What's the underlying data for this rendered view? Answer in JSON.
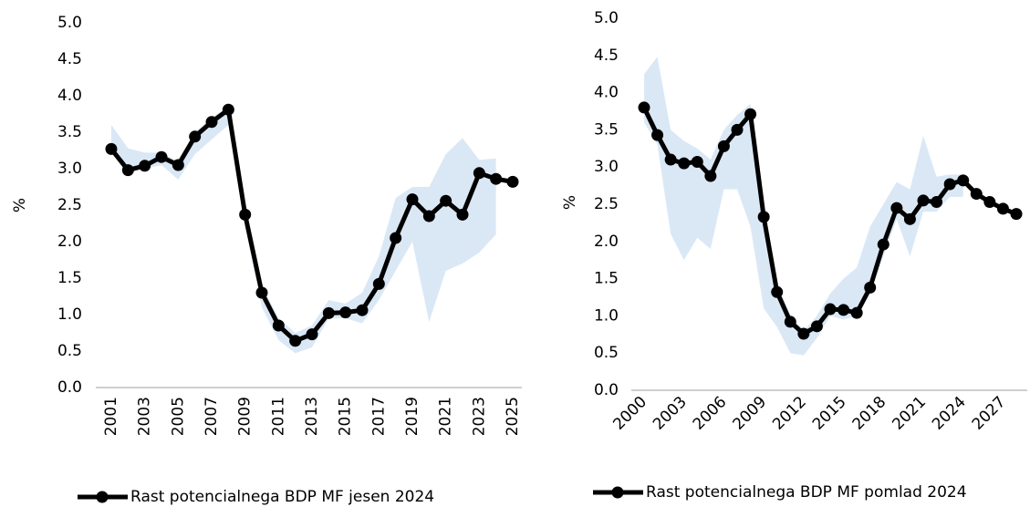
{
  "chart_data": [
    {
      "type": "line",
      "categories": [
        "2001",
        null,
        "2003",
        null,
        "2005",
        null,
        "2007",
        null,
        "2009",
        null,
        "2011",
        null,
        "2013",
        null,
        "2015",
        null,
        "2017",
        null,
        "2019",
        null,
        "2021",
        null,
        "2023",
        null,
        "2025"
      ],
      "series": [
        {
          "name": "Rast potencialnega BDP MF jesen 2024",
          "color": "#000000",
          "values": [
            3.27,
            2.98,
            3.04,
            3.16,
            3.05,
            3.44,
            3.64,
            3.81,
            2.37,
            1.3,
            0.85,
            0.64,
            0.73,
            1.02,
            1.03,
            1.06,
            1.42,
            2.05,
            2.58,
            2.35,
            2.56,
            2.37,
            2.94,
            2.86,
            2.82
          ]
        }
      ],
      "band": {
        "color": "#dae8f6",
        "high": [
          3.6,
          3.28,
          3.22,
          3.22,
          3.1,
          3.5,
          3.7,
          3.85,
          2.5,
          1.4,
          0.95,
          0.75,
          0.85,
          1.2,
          1.15,
          1.3,
          1.8,
          2.6,
          2.75,
          2.75,
          3.2,
          3.42,
          3.12,
          3.14,
          null
        ],
        "low": [
          3.3,
          3.0,
          3.0,
          3.05,
          2.85,
          3.2,
          3.4,
          3.6,
          2.2,
          1.1,
          0.65,
          0.47,
          0.55,
          0.95,
          0.95,
          0.88,
          1.2,
          1.6,
          2.0,
          0.9,
          1.6,
          1.7,
          1.85,
          2.1,
          null
        ]
      },
      "ylabel": "%",
      "ylim": [
        0,
        5
      ],
      "yticks": [
        {
          "value": 0,
          "label": "0.0"
        },
        0.5,
        {
          "value": 1,
          "label": "1.0"
        },
        1.5,
        {
          "value": 2,
          "label": "2.0"
        },
        2.5,
        {
          "value": 3,
          "label": "3.0"
        },
        3.5,
        {
          "value": 4,
          "label": "4.0"
        },
        4.5,
        {
          "value": 5,
          "label": "5.0"
        }
      ],
      "legend": "bottom"
    },
    {
      "type": "line",
      "categories": [
        "2000",
        null,
        null,
        "2003",
        null,
        null,
        "2006",
        null,
        null,
        "2009",
        null,
        null,
        "2012",
        null,
        null,
        "2015",
        null,
        null,
        "2018",
        null,
        null,
        "2021",
        null,
        null,
        "2024",
        null,
        null,
        "2027",
        null
      ],
      "series": [
        {
          "name": "Rast potencialnega BDP MF pomlad 2024",
          "color": "#000000",
          "values": [
            3.8,
            3.43,
            3.1,
            3.05,
            3.07,
            2.88,
            3.28,
            3.5,
            3.71,
            2.33,
            1.32,
            0.92,
            0.76,
            0.86,
            1.09,
            1.08,
            1.04,
            1.38,
            1.96,
            2.45,
            2.3,
            2.55,
            2.53,
            2.77,
            2.82,
            2.64,
            2.53,
            2.44,
            2.37
          ]
        }
      ],
      "band": {
        "color": "#dae8f6",
        "high": [
          4.25,
          4.48,
          3.5,
          3.35,
          3.25,
          3.1,
          3.5,
          3.7,
          3.85,
          2.5,
          1.45,
          1.0,
          0.8,
          1.0,
          1.3,
          1.5,
          1.65,
          2.2,
          2.5,
          2.8,
          2.7,
          3.42,
          2.87,
          2.9,
          2.9,
          null,
          null,
          null,
          null
        ],
        "low": [
          3.6,
          3.3,
          2.1,
          1.75,
          2.05,
          1.9,
          2.7,
          2.7,
          2.2,
          1.1,
          0.85,
          0.5,
          0.47,
          0.7,
          1.0,
          0.95,
          1.0,
          1.3,
          1.8,
          2.3,
          1.8,
          2.4,
          2.4,
          2.6,
          2.6,
          null,
          null,
          null,
          null
        ]
      },
      "ylabel": "%",
      "ylim": [
        0,
        5
      ],
      "yticks": [
        {
          "value": 0,
          "label": "0.0"
        },
        0.5,
        {
          "value": 1,
          "label": "1.0"
        },
        1.5,
        {
          "value": 2,
          "label": "2.0"
        },
        2.5,
        {
          "value": 3,
          "label": "3.0"
        },
        3.5,
        {
          "value": 4,
          "label": "4.0"
        },
        4.5,
        {
          "value": 5,
          "label": "5.0"
        }
      ],
      "legend": "bottom"
    }
  ]
}
